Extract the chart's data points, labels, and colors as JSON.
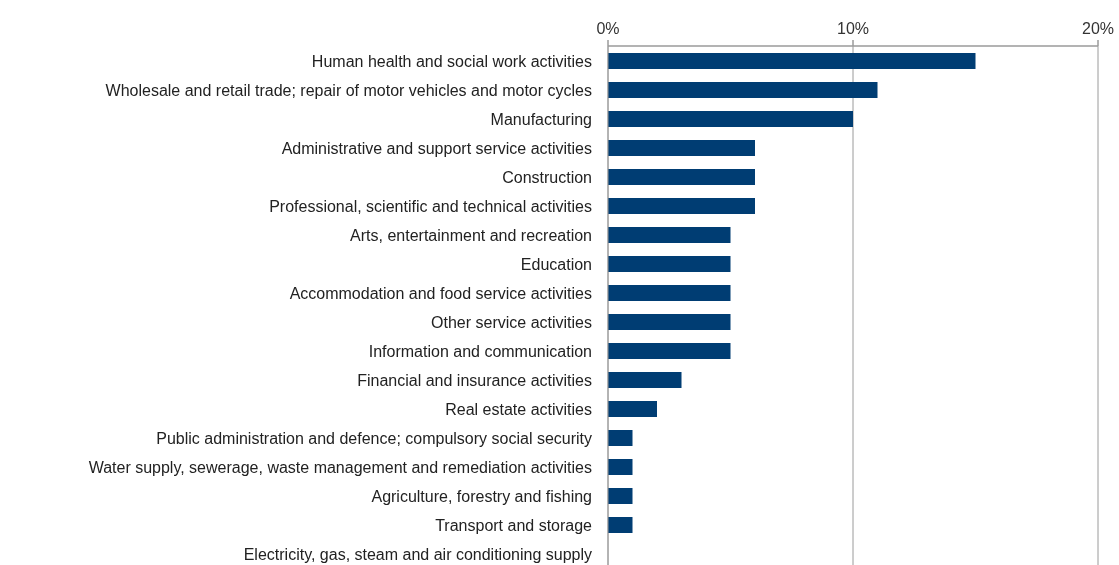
{
  "chart_data": {
    "type": "bar",
    "orientation": "horizontal",
    "categories": [
      "Human health and social work activities",
      "Wholesale and retail trade; repair of motor vehicles and motor cycles",
      "Manufacturing",
      "Administrative and support service activities",
      "Construction",
      "Professional, scientific and technical activities",
      "Arts, entertainment and recreation",
      "Education",
      "Accommodation and food service activities",
      "Other service activities",
      "Information and communication",
      "Financial and insurance activities",
      "Real estate activities",
      "Public administration and defence; compulsory social security",
      "Water supply, sewerage, waste management and remediation activities",
      "Agriculture, forestry and fishing",
      "Transport and storage",
      "Electricity, gas, steam and air conditioning supply"
    ],
    "values": [
      15,
      11,
      10,
      6,
      6,
      6,
      5,
      5,
      5,
      5,
      5,
      3,
      2,
      1,
      1,
      1,
      1,
      0
    ],
    "color": "#003d73",
    "xlim": [
      0,
      20
    ],
    "xticks": [
      {
        "value": 0,
        "label": "0%"
      },
      {
        "value": 10,
        "label": "10%"
      },
      {
        "value": 20,
        "label": "20%"
      }
    ],
    "grid": "x"
  }
}
